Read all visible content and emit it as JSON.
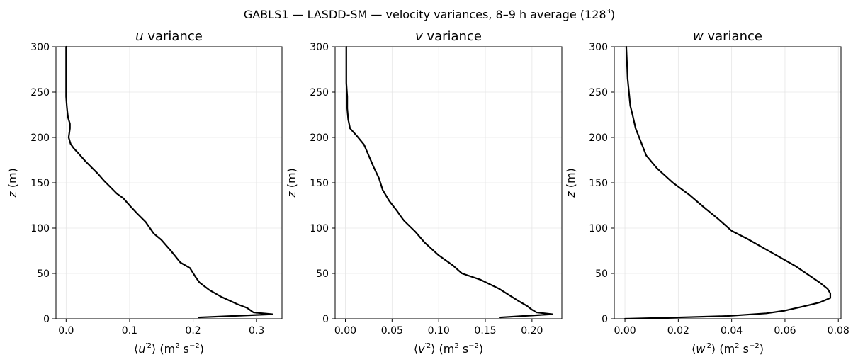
{
  "figure_title": {
    "pre": "GABLS1 — LASDD-SM — velocity variances, 8–9 h average (128",
    "sup": "3",
    "post": ")"
  },
  "chart_data": [
    {
      "type": "line",
      "title": {
        "var": "u",
        "rest": " variance"
      },
      "xlabel": {
        "open": "⟨",
        "var": "u",
        "prime": "′2",
        "close": "⟩ (m",
        "sup1": "2",
        "mid": " s",
        "sup2": "−2",
        "end": ")"
      },
      "ylabel": {
        "var": "z",
        "rest": " (m)"
      },
      "xlim": [
        -0.016,
        0.34
      ],
      "ylim": [
        0,
        300
      ],
      "xticks": [
        0.0,
        0.1,
        0.2,
        0.3
      ],
      "xtick_labels": [
        "0.0",
        "0.1",
        "0.2",
        "0.3"
      ],
      "yticks": [
        0,
        50,
        100,
        150,
        200,
        250,
        300
      ],
      "grid": true,
      "line_color": "#000000",
      "series": [
        {
          "x": [
            0.209,
            0.26,
            0.325,
            0.295,
            0.289,
            0.285,
            0.27,
            0.245,
            0.225,
            0.21,
            0.203,
            0.195,
            0.18,
            0.165,
            0.15,
            0.138,
            0.125,
            0.112,
            0.1,
            0.09,
            0.08,
            0.07,
            0.06,
            0.05,
            0.04,
            0.03,
            0.02,
            0.012,
            0.007,
            0.004,
            0.005,
            0.006,
            0.006,
            0.003,
            0.002,
            0.001,
            0.0,
            0.0,
            0.0,
            0.0,
            0.0
          ],
          "y": [
            1.5,
            3,
            5,
            7,
            10,
            12,
            16,
            24,
            32,
            40,
            47,
            56,
            62,
            75,
            87,
            94,
            107,
            116,
            125,
            133,
            138,
            145,
            152,
            160,
            167,
            174,
            182,
            188,
            193,
            200,
            205,
            210,
            215,
            222,
            228,
            235,
            245,
            260,
            275,
            290,
            300
          ]
        }
      ]
    },
    {
      "type": "line",
      "title": {
        "var": "v",
        "rest": " variance"
      },
      "xlabel": {
        "open": "⟨",
        "var": "v",
        "prime": "′2",
        "close": "⟩ (m",
        "sup1": "2",
        "mid": " s",
        "sup2": "−2",
        "end": ")"
      },
      "ylabel": {
        "var": "z",
        "rest": " (m)"
      },
      "xlim": [
        -0.011,
        0.232
      ],
      "ylim": [
        0,
        300
      ],
      "xticks": [
        0.0,
        0.05,
        0.1,
        0.15,
        0.2
      ],
      "xtick_labels": [
        "0.00",
        "0.05",
        "0.10",
        "0.15",
        "0.20"
      ],
      "yticks": [
        0,
        50,
        100,
        150,
        200,
        250,
        300
      ],
      "grid": true,
      "line_color": "#000000",
      "series": [
        {
          "x": [
            0.166,
            0.19,
            0.222,
            0.205,
            0.2,
            0.195,
            0.185,
            0.165,
            0.145,
            0.125,
            0.115,
            0.1,
            0.085,
            0.075,
            0.063,
            0.06,
            0.056,
            0.047,
            0.04,
            0.036,
            0.03,
            0.025,
            0.02,
            0.012,
            0.005,
            0.003,
            0.002,
            0.002,
            0.001,
            0.001,
            0.001,
            0.001
          ],
          "y": [
            1.5,
            3,
            5,
            7,
            10,
            14,
            20,
            33,
            43,
            50,
            59,
            70,
            84,
            96,
            108,
            112,
            118,
            130,
            142,
            155,
            168,
            180,
            192,
            202,
            210,
            220,
            232,
            245,
            260,
            275,
            290,
            300
          ]
        }
      ]
    },
    {
      "type": "line",
      "title": {
        "var": "w",
        "rest": " variance"
      },
      "xlabel": {
        "open": "⟨",
        "var": "w",
        "prime": "′2",
        "close": "⟩ (m",
        "sup1": "2",
        "mid": " s",
        "sup2": "−2",
        "end": ")"
      },
      "ylabel": {
        "var": "z",
        "rest": " (m)"
      },
      "xlim": [
        -0.004,
        0.081
      ],
      "ylim": [
        0,
        300
      ],
      "xticks": [
        0.0,
        0.02,
        0.04,
        0.06,
        0.08
      ],
      "xtick_labels": [
        "0.00",
        "0.02",
        "0.04",
        "0.06",
        "0.08"
      ],
      "yticks": [
        0,
        50,
        100,
        150,
        200,
        250,
        300
      ],
      "grid": true,
      "line_color": "#000000",
      "series": [
        {
          "x": [
            0.0,
            0.02,
            0.038,
            0.053,
            0.06,
            0.066,
            0.073,
            0.077,
            0.077,
            0.076,
            0.073,
            0.069,
            0.064,
            0.058,
            0.052,
            0.046,
            0.04,
            0.035,
            0.03,
            0.024,
            0.018,
            0.012,
            0.008,
            0.006,
            0.004,
            0.003,
            0.002,
            0.0015,
            0.001,
            0.0008,
            0.0005
          ],
          "y": [
            0,
            1.5,
            3,
            6,
            9,
            13,
            18,
            23,
            28,
            33,
            40,
            48,
            58,
            68,
            78,
            88,
            97,
            110,
            122,
            137,
            150,
            166,
            180,
            195,
            210,
            223,
            235,
            250,
            265,
            280,
            300
          ]
        }
      ]
    }
  ]
}
